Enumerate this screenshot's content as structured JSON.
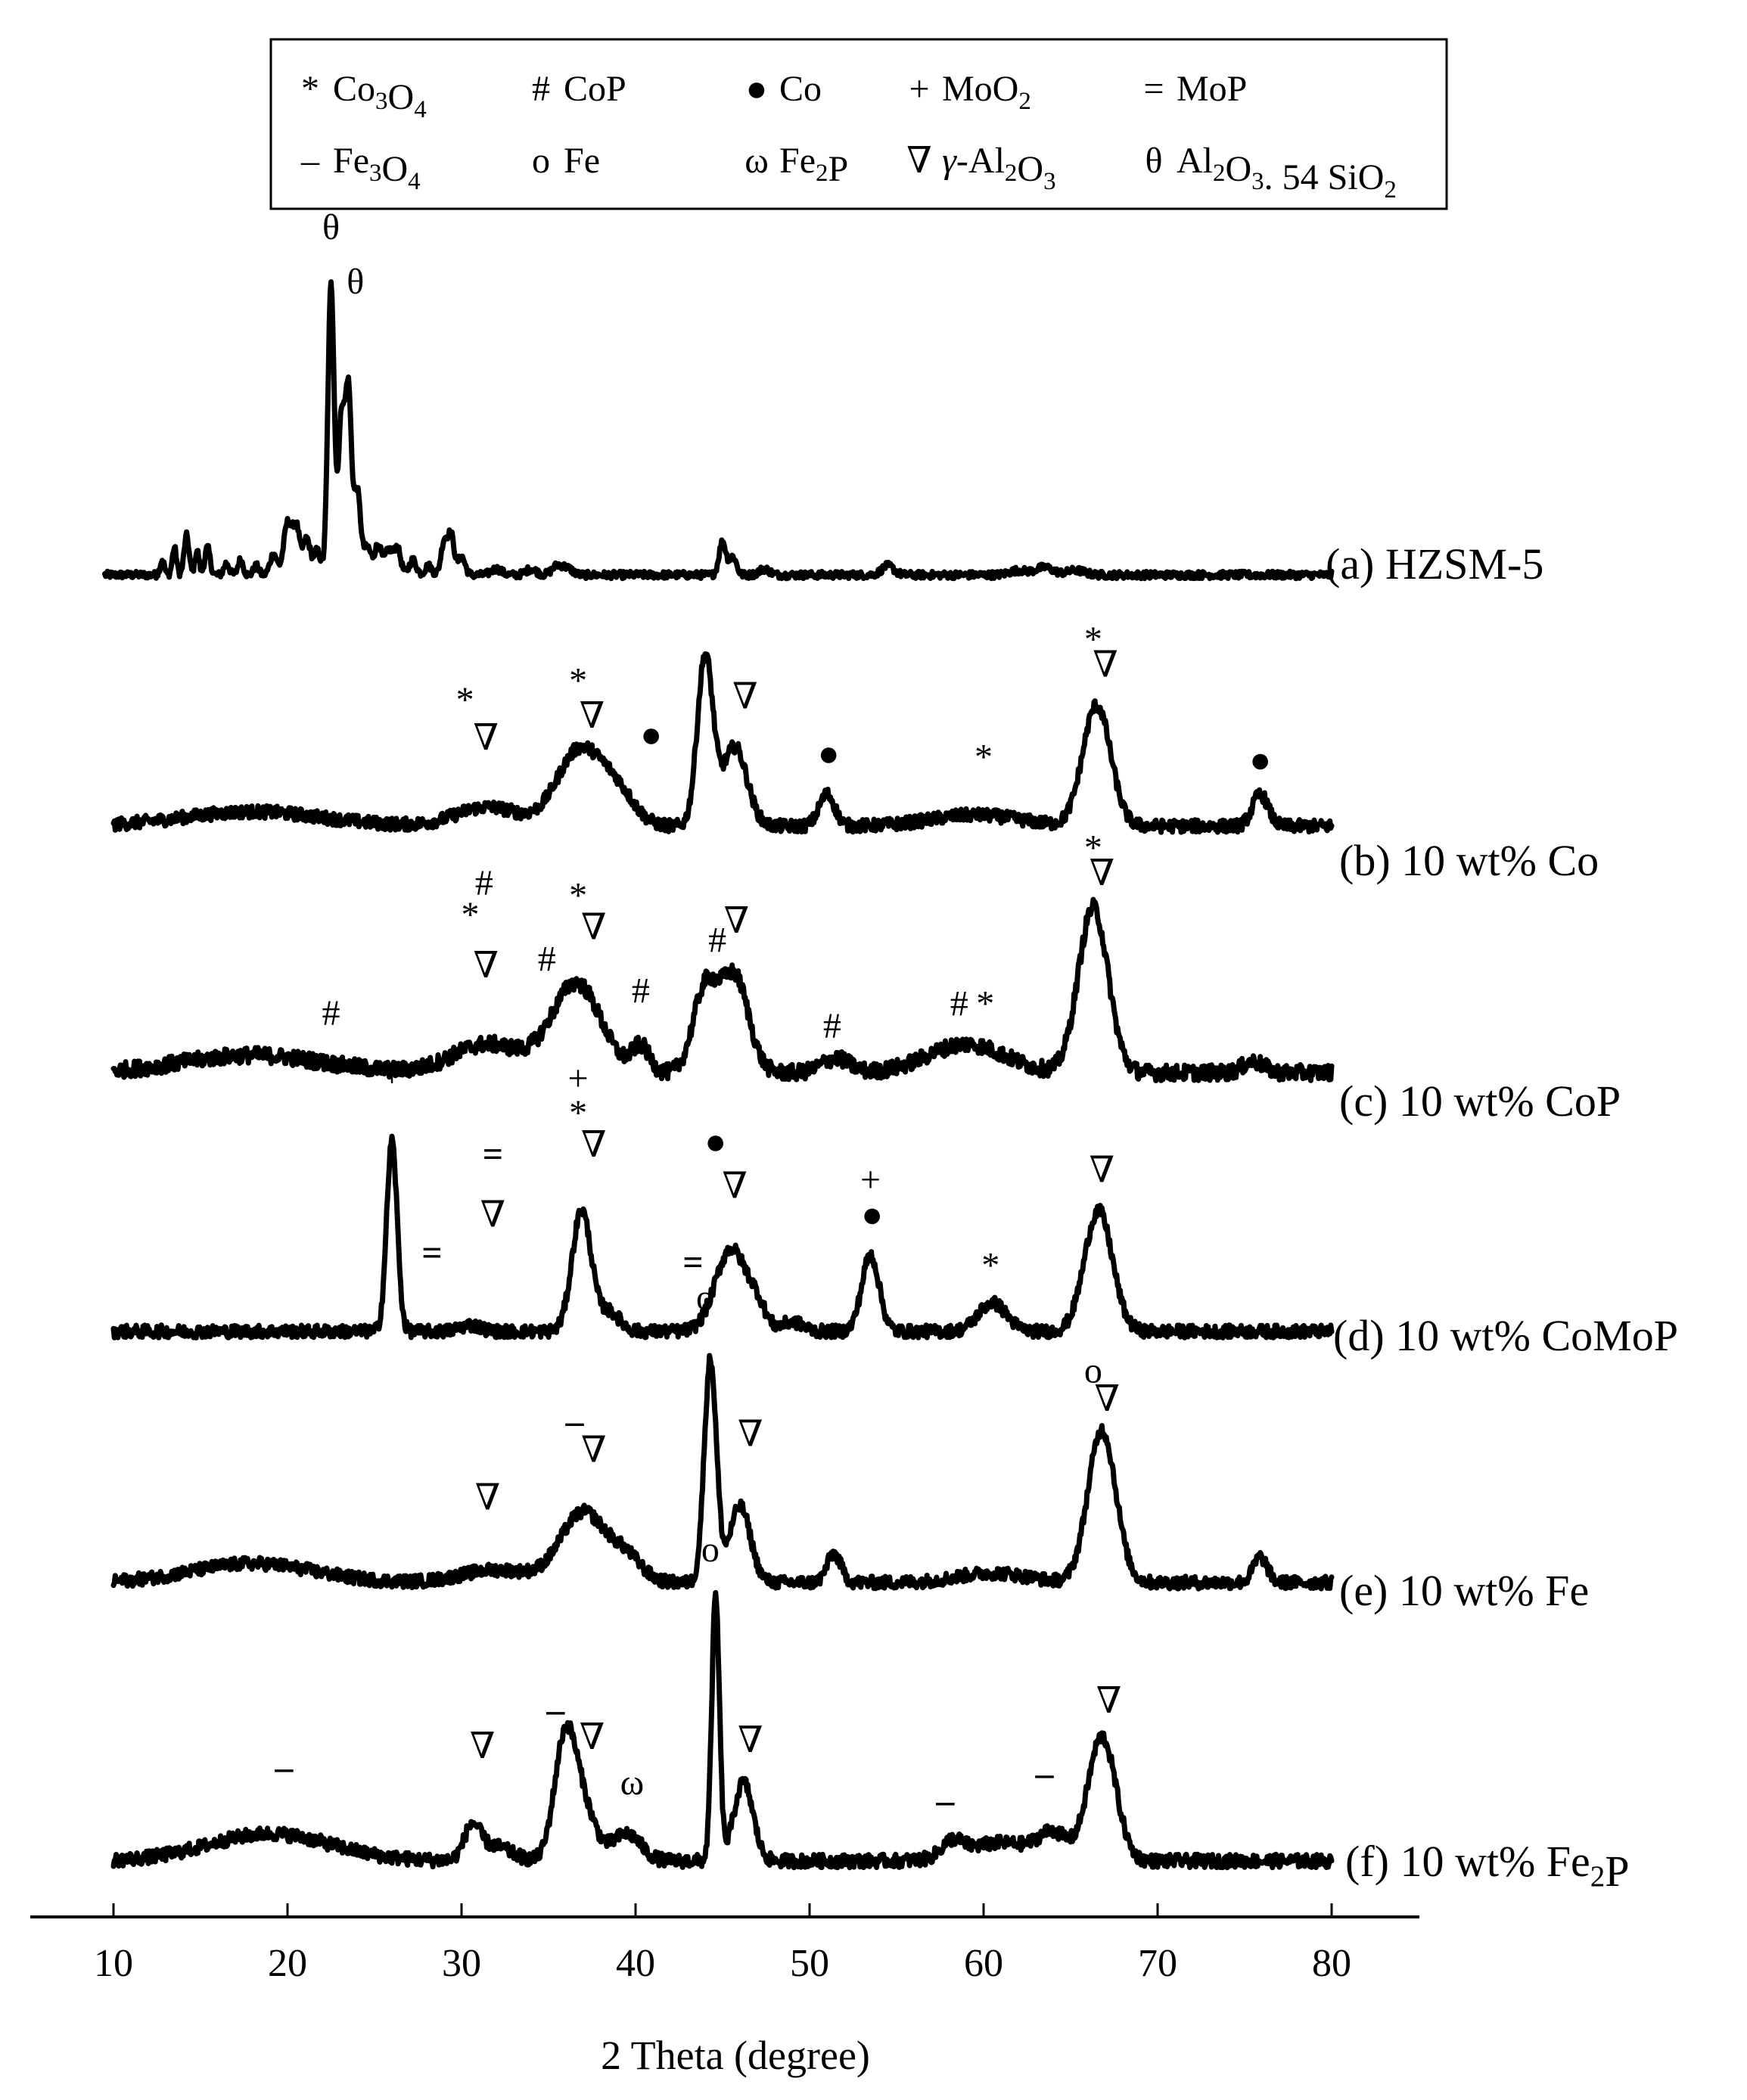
{
  "chart_data": {
    "type": "line",
    "title": "",
    "xlabel": "2 Theta (degree)",
    "ylabel": "",
    "xlim": [
      10,
      80
    ],
    "xticks": [
      "10",
      "20",
      "30",
      "40",
      "50",
      "60",
      "70",
      "80"
    ],
    "y_axis_shown": false,
    "grid": false,
    "legend_position": "top",
    "legend": [
      {
        "symbol": "*",
        "main": "Co",
        "parts": [
          [
            "Co",
            ""
          ],
          [
            "3",
            "sub"
          ],
          [
            "O",
            ""
          ],
          [
            "4",
            "sub"
          ]
        ]
      },
      {
        "symbol": "#",
        "main": "CoP",
        "parts": [
          [
            "CoP",
            ""
          ]
        ]
      },
      {
        "symbol": "●",
        "main": "Co",
        "parts": [
          [
            "Co",
            ""
          ]
        ]
      },
      {
        "symbol": "+",
        "main": "MoO",
        "parts": [
          [
            "MoO",
            ""
          ],
          [
            "2",
            "sub"
          ]
        ]
      },
      {
        "symbol": "=",
        "main": "MoP",
        "parts": [
          [
            "MoP",
            ""
          ]
        ]
      },
      {
        "symbol": "–",
        "main": "Fe",
        "parts": [
          [
            "Fe",
            ""
          ],
          [
            "3",
            "sub"
          ],
          [
            "O",
            ""
          ],
          [
            "4",
            "sub"
          ]
        ]
      },
      {
        "symbol": "o",
        "main": "Fe",
        "parts": [
          [
            "Fe",
            ""
          ]
        ]
      },
      {
        "symbol": "ω",
        "main": "Fe",
        "parts": [
          [
            "Fe",
            ""
          ],
          [
            "2",
            "sub"
          ],
          [
            "P",
            ""
          ]
        ]
      },
      {
        "symbol": "∇",
        "main": "γ-Al",
        "parts": [
          [
            "γ",
            "italic"
          ],
          [
            "-Al",
            ""
          ],
          [
            "2",
            "sub"
          ],
          [
            "O",
            ""
          ],
          [
            "3",
            "sub"
          ]
        ]
      },
      {
        "symbol": "θ",
        "main": "Al",
        "parts": [
          [
            "Al",
            ""
          ],
          [
            "2",
            "sub"
          ],
          [
            "O",
            ""
          ],
          [
            "3",
            "sub"
          ],
          [
            ". 54 SiO",
            ""
          ],
          [
            "2",
            "sub"
          ]
        ]
      }
    ],
    "series": [
      {
        "name": "(a) HZSM-5",
        "label_parts": [
          [
            "(a) HZSM-5",
            ""
          ]
        ],
        "baseline": 0,
        "noise": 0.12,
        "peaks": [
          [
            12.8,
            0.5,
            0.12
          ],
          [
            13.5,
            0.9,
            0.12
          ],
          [
            14.2,
            1.3,
            0.14
          ],
          [
            14.8,
            0.8,
            0.12
          ],
          [
            15.4,
            0.9,
            0.15
          ],
          [
            16.5,
            0.4,
            0.15
          ],
          [
            17.3,
            0.5,
            0.15
          ],
          [
            18.2,
            0.3,
            0.15
          ],
          [
            19.2,
            0.7,
            0.2
          ],
          [
            20.0,
            1.7,
            0.22
          ],
          [
            20.5,
            1.6,
            0.2
          ],
          [
            21.1,
            1.2,
            0.2
          ],
          [
            21.7,
            0.8,
            0.2
          ],
          [
            22.5,
            9.6,
            0.18
          ],
          [
            23.1,
            5.2,
            0.18
          ],
          [
            23.5,
            5.9,
            0.17
          ],
          [
            24.0,
            2.8,
            0.2
          ],
          [
            24.6,
            0.9,
            0.2
          ],
          [
            25.2,
            1.0,
            0.2
          ],
          [
            25.8,
            0.8,
            0.2
          ],
          [
            26.3,
            0.9,
            0.2
          ],
          [
            27.2,
            0.5,
            0.2
          ],
          [
            28.1,
            0.3,
            0.2
          ],
          [
            29.0,
            1.1,
            0.18
          ],
          [
            29.4,
            1.3,
            0.18
          ],
          [
            30.0,
            0.6,
            0.2
          ],
          [
            32.0,
            0.2,
            0.3
          ],
          [
            34.0,
            0.2,
            0.3
          ],
          [
            35.5,
            0.3,
            0.3
          ],
          [
            36.1,
            0.2,
            0.3
          ],
          [
            45.0,
            1.1,
            0.2
          ],
          [
            45.6,
            0.6,
            0.2
          ],
          [
            47.4,
            0.2,
            0.3
          ],
          [
            54.5,
            0.3,
            0.35
          ],
          [
            62.0,
            0.15,
            0.5
          ],
          [
            63.5,
            0.25,
            0.5
          ],
          [
            65.3,
            0.15,
            0.5
          ]
        ],
        "markers": [
          {
            "x": 22.5,
            "y": 11.1,
            "sym": "θ"
          },
          {
            "x": 23.9,
            "y": 9.3,
            "sym": "θ"
          }
        ]
      },
      {
        "name": "(b) 10 wt% Co",
        "label_parts": [
          [
            "(b) 10 wt% Co",
            ""
          ]
        ],
        "baseline": 0,
        "noise": 0.2,
        "peaks": [
          [
            18.0,
            0.45,
            4.0
          ],
          [
            31.5,
            0.6,
            1.8
          ],
          [
            36.8,
            2.4,
            1.3
          ],
          [
            39.0,
            0.9,
            1.0
          ],
          [
            44.0,
            5.3,
            0.45
          ],
          [
            45.7,
            2.5,
            0.7
          ],
          [
            51.0,
            1.0,
            0.45
          ],
          [
            59.5,
            0.35,
            2.5
          ],
          [
            66.5,
            3.8,
            0.8
          ],
          [
            75.9,
            1.0,
            0.45
          ]
        ],
        "markers": [
          {
            "x": 30.2,
            "y": 3.6,
            "sym": "*"
          },
          {
            "x": 31.4,
            "y": 2.4,
            "sym": "∇"
          },
          {
            "x": 36.7,
            "y": 4.2,
            "sym": "*"
          },
          {
            "x": 37.5,
            "y": 3.1,
            "sym": "∇"
          },
          {
            "x": 40.9,
            "y": 2.5,
            "sym": "●"
          },
          {
            "x": 46.3,
            "y": 3.7,
            "sym": "∇"
          },
          {
            "x": 51.1,
            "y": 1.9,
            "sym": "●"
          },
          {
            "x": 60.0,
            "y": 1.8,
            "sym": "*"
          },
          {
            "x": 66.3,
            "y": 5.5,
            "sym": "*"
          },
          {
            "x": 67.0,
            "y": 4.7,
            "sym": "∇"
          },
          {
            "x": 75.9,
            "y": 1.7,
            "sym": "●"
          }
        ]
      },
      {
        "name": "(c) 10 wt% CoP",
        "label_parts": [
          [
            "(c) 10 wt% CoP",
            ""
          ]
        ],
        "baseline": 0,
        "noise": 0.25,
        "peaks": [
          [
            18.0,
            0.55,
            4.0
          ],
          [
            31.5,
            0.9,
            2.0
          ],
          [
            36.6,
            2.8,
            1.4
          ],
          [
            40.3,
            0.8,
            0.5
          ],
          [
            44.0,
            2.6,
            0.7
          ],
          [
            45.7,
            3.0,
            0.8
          ],
          [
            51.5,
            0.45,
            0.8
          ],
          [
            59.0,
            0.9,
            2.2
          ],
          [
            66.3,
            5.2,
            0.85
          ],
          [
            75.5,
            0.35,
            0.6
          ]
        ],
        "markers": [
          {
            "x": 22.5,
            "y": 1.5,
            "sym": "#"
          },
          {
            "x": 30.5,
            "y": 4.6,
            "sym": "*"
          },
          {
            "x": 31.3,
            "y": 5.6,
            "sym": "#"
          },
          {
            "x": 31.4,
            "y": 3.0,
            "sym": "∇"
          },
          {
            "x": 34.9,
            "y": 3.2,
            "sym": "#"
          },
          {
            "x": 36.7,
            "y": 5.2,
            "sym": "*"
          },
          {
            "x": 37.6,
            "y": 4.2,
            "sym": "∇"
          },
          {
            "x": 40.3,
            "y": 2.2,
            "sym": "#"
          },
          {
            "x": 44.7,
            "y": 3.8,
            "sym": "#"
          },
          {
            "x": 45.8,
            "y": 4.4,
            "sym": "∇"
          },
          {
            "x": 51.3,
            "y": 1.1,
            "sym": "#"
          },
          {
            "x": 58.6,
            "y": 1.8,
            "sym": "#"
          },
          {
            "x": 60.1,
            "y": 1.8,
            "sym": "*"
          },
          {
            "x": 66.3,
            "y": 6.7,
            "sym": "*"
          },
          {
            "x": 66.8,
            "y": 5.9,
            "sym": "∇"
          }
        ]
      },
      {
        "name": "(d) 10 wt% CoMoP",
        "label_parts": [
          [
            "(d) 10 wt% CoMoP",
            ""
          ]
        ],
        "baseline": 0,
        "noise": 0.2,
        "peaks": [
          [
            26.0,
            6.0,
            0.3
          ],
          [
            30.5,
            0.2,
            0.6
          ],
          [
            36.9,
            3.8,
            0.55
          ],
          [
            38.5,
            0.6,
            0.6
          ],
          [
            45.5,
            2.6,
            0.9
          ],
          [
            47.0,
            0.6,
            0.5
          ],
          [
            49.0,
            0.3,
            0.6
          ],
          [
            53.5,
            2.4,
            0.5
          ],
          [
            60.5,
            0.9,
            0.8
          ],
          [
            66.6,
            3.8,
            0.8
          ]
        ],
        "markers": [
          {
            "x": 26.0,
            "y": 7.7,
            "sym": "+"
          },
          {
            "x": 28.3,
            "y": 2.1,
            "sym": "="
          },
          {
            "x": 31.8,
            "y": 5.2,
            "sym": "="
          },
          {
            "x": 31.8,
            "y": 3.3,
            "sym": "∇"
          },
          {
            "x": 36.7,
            "y": 7.6,
            "sym": "+"
          },
          {
            "x": 36.7,
            "y": 6.5,
            "sym": "*"
          },
          {
            "x": 37.6,
            "y": 5.5,
            "sym": "∇"
          },
          {
            "x": 43.3,
            "y": 1.8,
            "sym": "="
          },
          {
            "x": 44.6,
            "y": 5.6,
            "sym": "●"
          },
          {
            "x": 45.7,
            "y": 4.2,
            "sym": "∇"
          },
          {
            "x": 53.5,
            "y": 4.4,
            "sym": "+"
          },
          {
            "x": 53.6,
            "y": 3.3,
            "sym": "●"
          },
          {
            "x": 60.4,
            "y": 1.7,
            "sym": "*"
          },
          {
            "x": 66.8,
            "y": 4.7,
            "sym": "∇"
          }
        ]
      },
      {
        "name": "(e) 10 wt% Fe",
        "label_parts": [
          [
            "(e) 10 wt% Fe",
            ""
          ]
        ],
        "baseline": 0,
        "noise": 0.2,
        "peaks": [
          [
            18.0,
            0.6,
            3.5
          ],
          [
            32.0,
            0.4,
            2.0
          ],
          [
            37.0,
            2.2,
            1.3
          ],
          [
            39.5,
            0.7,
            0.9
          ],
          [
            44.3,
            7.0,
            0.35
          ],
          [
            46.0,
            2.4,
            0.6
          ],
          [
            51.4,
            0.9,
            0.4
          ],
          [
            60.5,
            0.3,
            2.0
          ],
          [
            66.8,
            4.8,
            0.8
          ],
          [
            75.9,
            0.8,
            0.4
          ]
        ],
        "markers": [
          {
            "x": 31.5,
            "y": 2.3,
            "sym": "∇"
          },
          {
            "x": 36.5,
            "y": 4.7,
            "sym": "–"
          },
          {
            "x": 37.6,
            "y": 3.8,
            "sym": "∇"
          },
          {
            "x": 44.0,
            "y": 8.6,
            "sym": "o"
          },
          {
            "x": 46.6,
            "y": 4.3,
            "sym": "∇"
          },
          {
            "x": 66.3,
            "y": 6.3,
            "sym": "o"
          },
          {
            "x": 67.1,
            "y": 5.4,
            "sym": "∇"
          }
        ]
      },
      {
        "name": "(f) 10 wt% Fe2P",
        "label_parts": [
          [
            "(f) 10 wt% Fe",
            ""
          ],
          [
            "2",
            "sub"
          ],
          [
            "P",
            ""
          ]
        ],
        "baseline": 0,
        "noise": 0.22,
        "peaks": [
          [
            19.0,
            0.9,
            3.5
          ],
          [
            30.6,
            1.0,
            0.45
          ],
          [
            31.8,
            0.5,
            1.0
          ],
          [
            35.9,
            3.3,
            0.6
          ],
          [
            36.8,
            2.0,
            0.8
          ],
          [
            39.5,
            0.9,
            0.8
          ],
          [
            44.6,
            8.7,
            0.22
          ],
          [
            46.2,
            2.6,
            0.55
          ],
          [
            58.2,
            0.5,
            0.6
          ],
          [
            61.0,
            0.6,
            2.0
          ],
          [
            64.0,
            0.8,
            0.8
          ],
          [
            66.8,
            4.1,
            0.8
          ]
        ],
        "markers": [
          {
            "x": 19.8,
            "y": 2.7,
            "sym": "–"
          },
          {
            "x": 31.2,
            "y": 3.4,
            "sym": "∇"
          },
          {
            "x": 35.4,
            "y": 4.6,
            "sym": "–"
          },
          {
            "x": 37.5,
            "y": 3.7,
            "sym": "∇"
          },
          {
            "x": 39.8,
            "y": 2.2,
            "sym": "ω"
          },
          {
            "x": 44.3,
            "y": 9.9,
            "sym": "o"
          },
          {
            "x": 46.6,
            "y": 3.6,
            "sym": "∇"
          },
          {
            "x": 57.8,
            "y": 1.6,
            "sym": "–"
          },
          {
            "x": 63.5,
            "y": 2.5,
            "sym": "–"
          },
          {
            "x": 67.2,
            "y": 4.9,
            "sym": "∇"
          }
        ]
      }
    ]
  }
}
